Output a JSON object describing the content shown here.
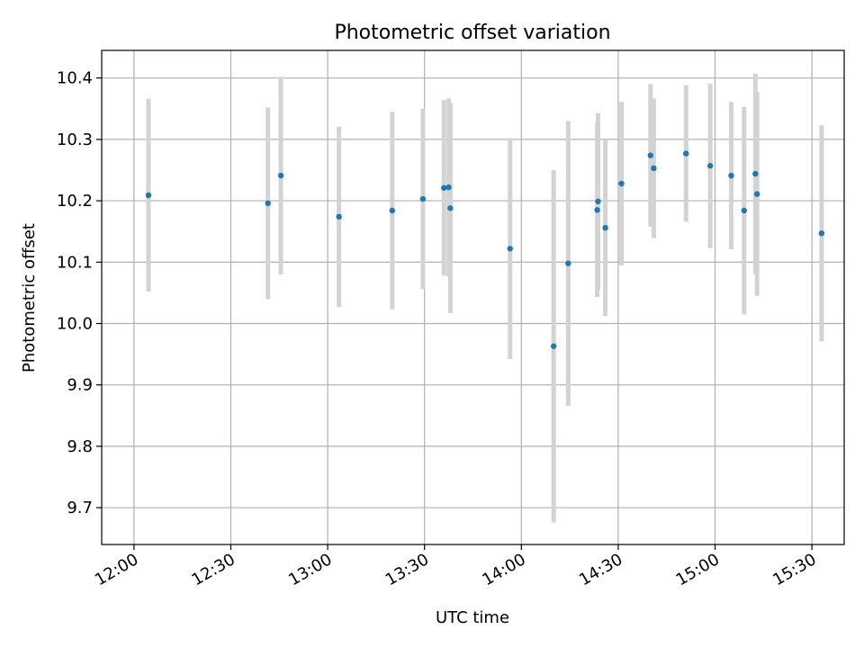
{
  "chart_data": {
    "type": "scatter",
    "title": "Photometric offset variation",
    "xlabel": "UTC time",
    "ylabel": "Photometric offset",
    "xlim": [
      "11:50",
      "15:40"
    ],
    "ylim": [
      9.64,
      10.445
    ],
    "grid": true,
    "x_ticks": [
      "12:00",
      "12:30",
      "13:00",
      "13:30",
      "14:00",
      "14:30",
      "15:00",
      "15:30"
    ],
    "y_ticks": [
      "9.7",
      "9.8",
      "9.9",
      "10.0",
      "10.1",
      "10.2",
      "10.3",
      "10.4"
    ],
    "point_color": "#1f77b4",
    "errorbar_color": "#d3d3d3",
    "points": [
      {
        "time": "12:04:30",
        "y": 10.209,
        "err": 0.157
      },
      {
        "time": "12:41:30",
        "y": 10.196,
        "err": 0.156
      },
      {
        "time": "12:45:30",
        "y": 10.241,
        "err": 0.161
      },
      {
        "time": "13:03:30",
        "y": 10.174,
        "err": 0.147
      },
      {
        "time": "13:20:00",
        "y": 10.184,
        "err": 0.161
      },
      {
        "time": "13:29:30",
        "y": 10.203,
        "err": 0.147
      },
      {
        "time": "13:36:00",
        "y": 10.221,
        "err": 0.143
      },
      {
        "time": "13:37:30",
        "y": 10.222,
        "err": 0.145
      },
      {
        "time": "13:38:00",
        "y": 10.188,
        "err": 0.171
      },
      {
        "time": "13:56:30",
        "y": 10.122,
        "err": 0.18
      },
      {
        "time": "14:10:00",
        "y": 9.963,
        "err": 0.287
      },
      {
        "time": "14:14:30",
        "y": 10.098,
        "err": 0.232
      },
      {
        "time": "14:23:30",
        "y": 10.185,
        "err": 0.142
      },
      {
        "time": "14:23:45",
        "y": 10.199,
        "err": 0.144
      },
      {
        "time": "14:26:00",
        "y": 10.156,
        "err": 0.144
      },
      {
        "time": "14:31:00",
        "y": 10.228,
        "err": 0.133
      },
      {
        "time": "14:40:00",
        "y": 10.274,
        "err": 0.116
      },
      {
        "time": "14:41:00",
        "y": 10.253,
        "err": 0.114
      },
      {
        "time": "14:51:00",
        "y": 10.277,
        "err": 0.111
      },
      {
        "time": "14:58:30",
        "y": 10.257,
        "err": 0.134
      },
      {
        "time": "15:05:00",
        "y": 10.241,
        "err": 0.12
      },
      {
        "time": "15:09:00",
        "y": 10.184,
        "err": 0.169
      },
      {
        "time": "15:12:30",
        "y": 10.244,
        "err": 0.163
      },
      {
        "time": "15:13:00",
        "y": 10.211,
        "err": 0.166
      },
      {
        "time": "15:33:00",
        "y": 10.147,
        "err": 0.176
      }
    ]
  }
}
